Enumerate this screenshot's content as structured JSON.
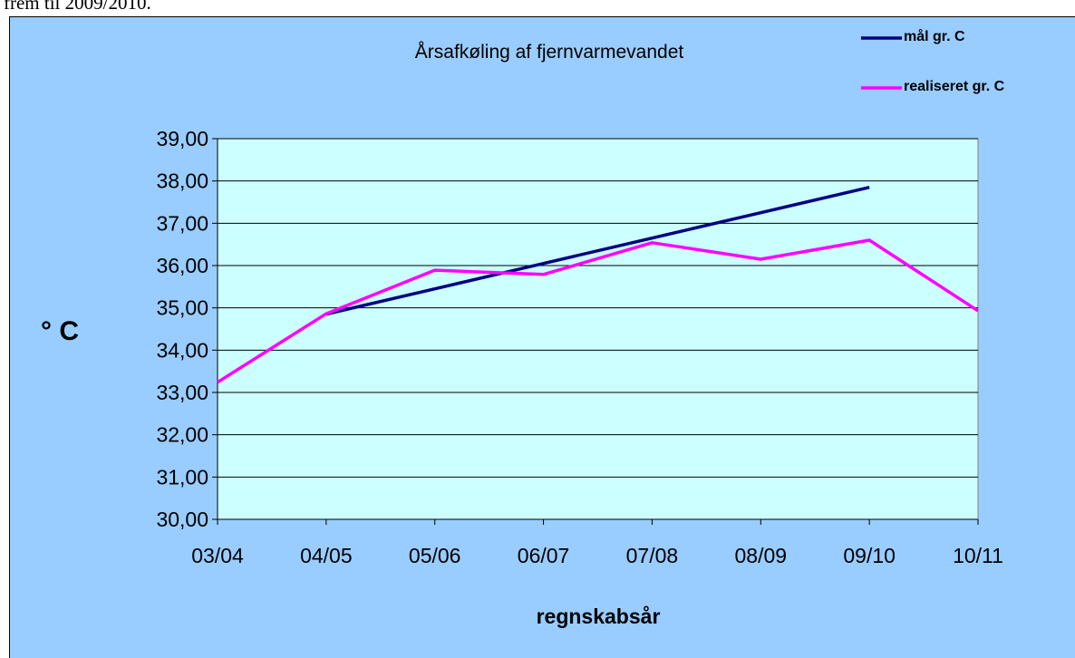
{
  "document_text": "frem til 2009/2010.",
  "chart_data": {
    "type": "line",
    "title": "Årsafkøling af fjernvarmevandet",
    "x_label": "regnskabsår",
    "y_label": "° C",
    "categories": [
      "03/04",
      "04/05",
      "05/06",
      "06/07",
      "07/08",
      "08/09",
      "09/10",
      "10/11"
    ],
    "series": [
      {
        "name": "mål gr. C",
        "color": "#000080",
        "values": [
          null,
          34.85,
          35.45,
          36.05,
          36.65,
          37.25,
          37.85,
          null
        ]
      },
      {
        "name": "realiseret gr. C",
        "color": "#ff00ff",
        "values": [
          33.24,
          34.86,
          35.89,
          35.79,
          36.54,
          36.15,
          36.6,
          34.93
        ]
      }
    ],
    "ylim": [
      30,
      39
    ],
    "yticks": [
      {
        "value": 30,
        "label": "30,00"
      },
      {
        "value": 31,
        "label": "31,00"
      },
      {
        "value": 32,
        "label": "32,00"
      },
      {
        "value": 33,
        "label": "33,00"
      },
      {
        "value": 34,
        "label": "34,00"
      },
      {
        "value": 35,
        "label": "35,00"
      },
      {
        "value": 36,
        "label": "36,00"
      },
      {
        "value": 37,
        "label": "37,00"
      },
      {
        "value": 38,
        "label": "38,00"
      },
      {
        "value": 39,
        "label": "39,00"
      }
    ],
    "grid": true
  }
}
